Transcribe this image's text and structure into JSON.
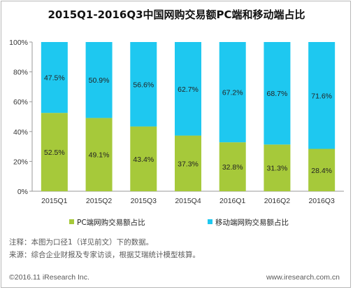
{
  "title": "2015Q1-2016Q3中国网购交易额PC端和移动端占比",
  "chart_data": {
    "type": "bar",
    "stacked": true,
    "categories": [
      "2015Q1",
      "2015Q2",
      "2015Q3",
      "2015Q4",
      "2016Q1",
      "2016Q2",
      "2016Q3"
    ],
    "series": [
      {
        "name": "PC端网购交易额占比",
        "color": "#a6c93a",
        "values": [
          52.5,
          49.1,
          43.4,
          37.3,
          32.8,
          31.3,
          28.4
        ],
        "labels": [
          "52.5%",
          "49.1%",
          "43.4%",
          "37.3%",
          "32.8%",
          "31.3%",
          "28.4%"
        ]
      },
      {
        "name": "移动端网购交易额占比",
        "color": "#1ec8f0",
        "values": [
          47.5,
          50.9,
          56.6,
          62.7,
          67.2,
          68.7,
          71.6
        ],
        "labels": [
          "47.5%",
          "50.9%",
          "56.6%",
          "62.7%",
          "67.2%",
          "68.7%",
          "71.6%"
        ]
      }
    ],
    "ylim": [
      0,
      100
    ],
    "yticks": [
      "0%",
      "20%",
      "40%",
      "60%",
      "80%",
      "100%"
    ],
    "legend": "bottom",
    "grid": false
  },
  "notes": {
    "line1": "注释：本图为口径1（详见前文）下的数据。",
    "line2": "来源：综合企业财报及专家访谈，根据艾瑞统计模型核算。"
  },
  "footer": {
    "copyright": "©2016.11 iResearch Inc.",
    "website": "www.iresearch.com.cn"
  }
}
